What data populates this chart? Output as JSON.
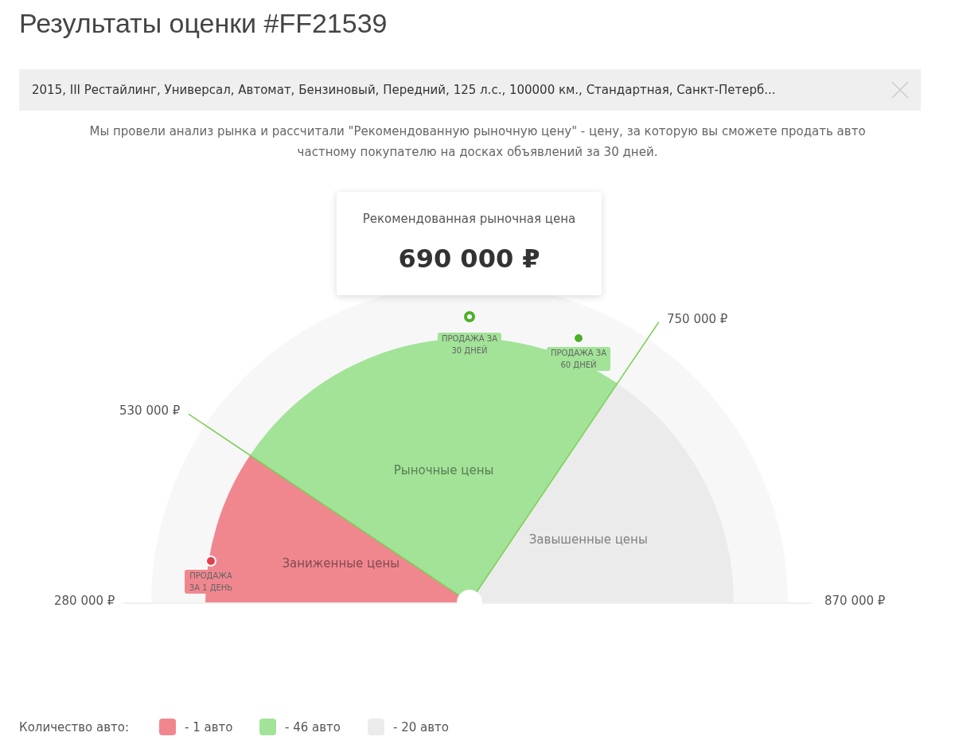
{
  "chart_data": {
    "type": "pie",
    "title": "Результаты оценки #FF21539",
    "subtitle": "2015, III Рестайлинг, Универсал, Автомат, Бензиновый, Передний, 125 л.с., 100000 км., Стандартная, Санкт-Петерб...",
    "legend_title": "Количество авто:",
    "categories": [
      "Заниженные цены",
      "Рыночные цены",
      "Завышенные цены"
    ],
    "values": [
      18.8,
      50.1,
      31.1
    ],
    "colors": [
      "#f0878f",
      "#a2e398",
      "#ebebeb"
    ],
    "annotations": [
      "Мы провели анализ рынка и рассчитали \"Рекомендованную рыночную цену\" - цену, за которую вы сможете продать авто частному покупателю на досках объявлений за 30 дней.",
      "Рекомендованная рыночная цена",
      "690 000 ₽",
      "280 000 ₽",
      "530 000 ₽",
      "750 000 ₽",
      "870 000 ₽",
      "ПРОДАЖА ЗА 30 ДНЕЙ",
      "ПРОДАЖА ЗА 60 ДНЕЙ",
      "ПРОДАЖА ЗА 1 ДЕНЬ",
      "- 1 авто",
      "- 46 авто",
      "- 20 авто"
    ]
  }
}
